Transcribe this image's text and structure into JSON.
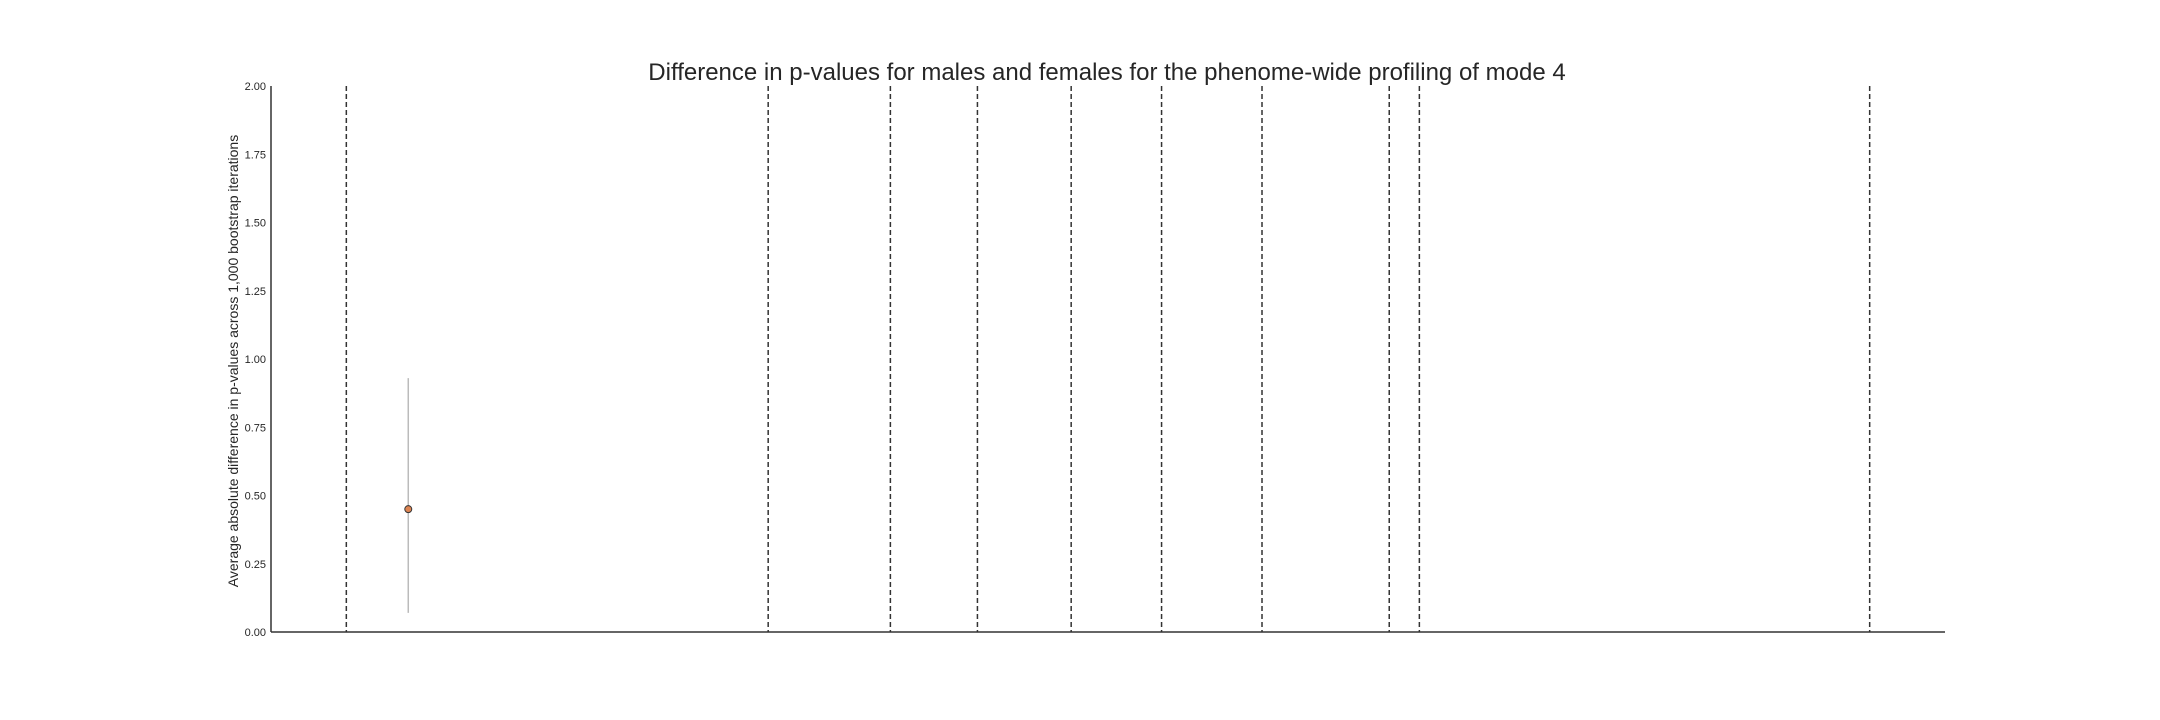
{
  "chart_data": {
    "type": "scatter",
    "title": "Difference in p-values for males and females for the phenome-wide profiling of mode 4",
    "xlabel": "",
    "ylabel": "Average absolute difference in p-values across 1,000 bootstrap iterations",
    "ylim": [
      0,
      2
    ],
    "yticks": [
      "0.00",
      "0.25",
      "0.50",
      "0.75",
      "1.00",
      "1.25",
      "1.50",
      "1.75",
      "2.00"
    ],
    "xlim": [
      0,
      100
    ],
    "grid": false,
    "legend": "none",
    "group_separators_x": [
      4.5,
      29.7,
      37.0,
      42.2,
      47.8,
      53.2,
      59.2,
      66.8,
      68.6,
      95.5
    ],
    "points": [
      {
        "x": 8.2,
        "y": 0.45,
        "err_low": 0.07,
        "err_high": 0.93
      }
    ],
    "colors": {
      "point_fill": "#dd8452",
      "point_edge": "#333333",
      "errorbar": "#bbbbbb",
      "separator": "#333333",
      "axis": "#333333"
    }
  }
}
